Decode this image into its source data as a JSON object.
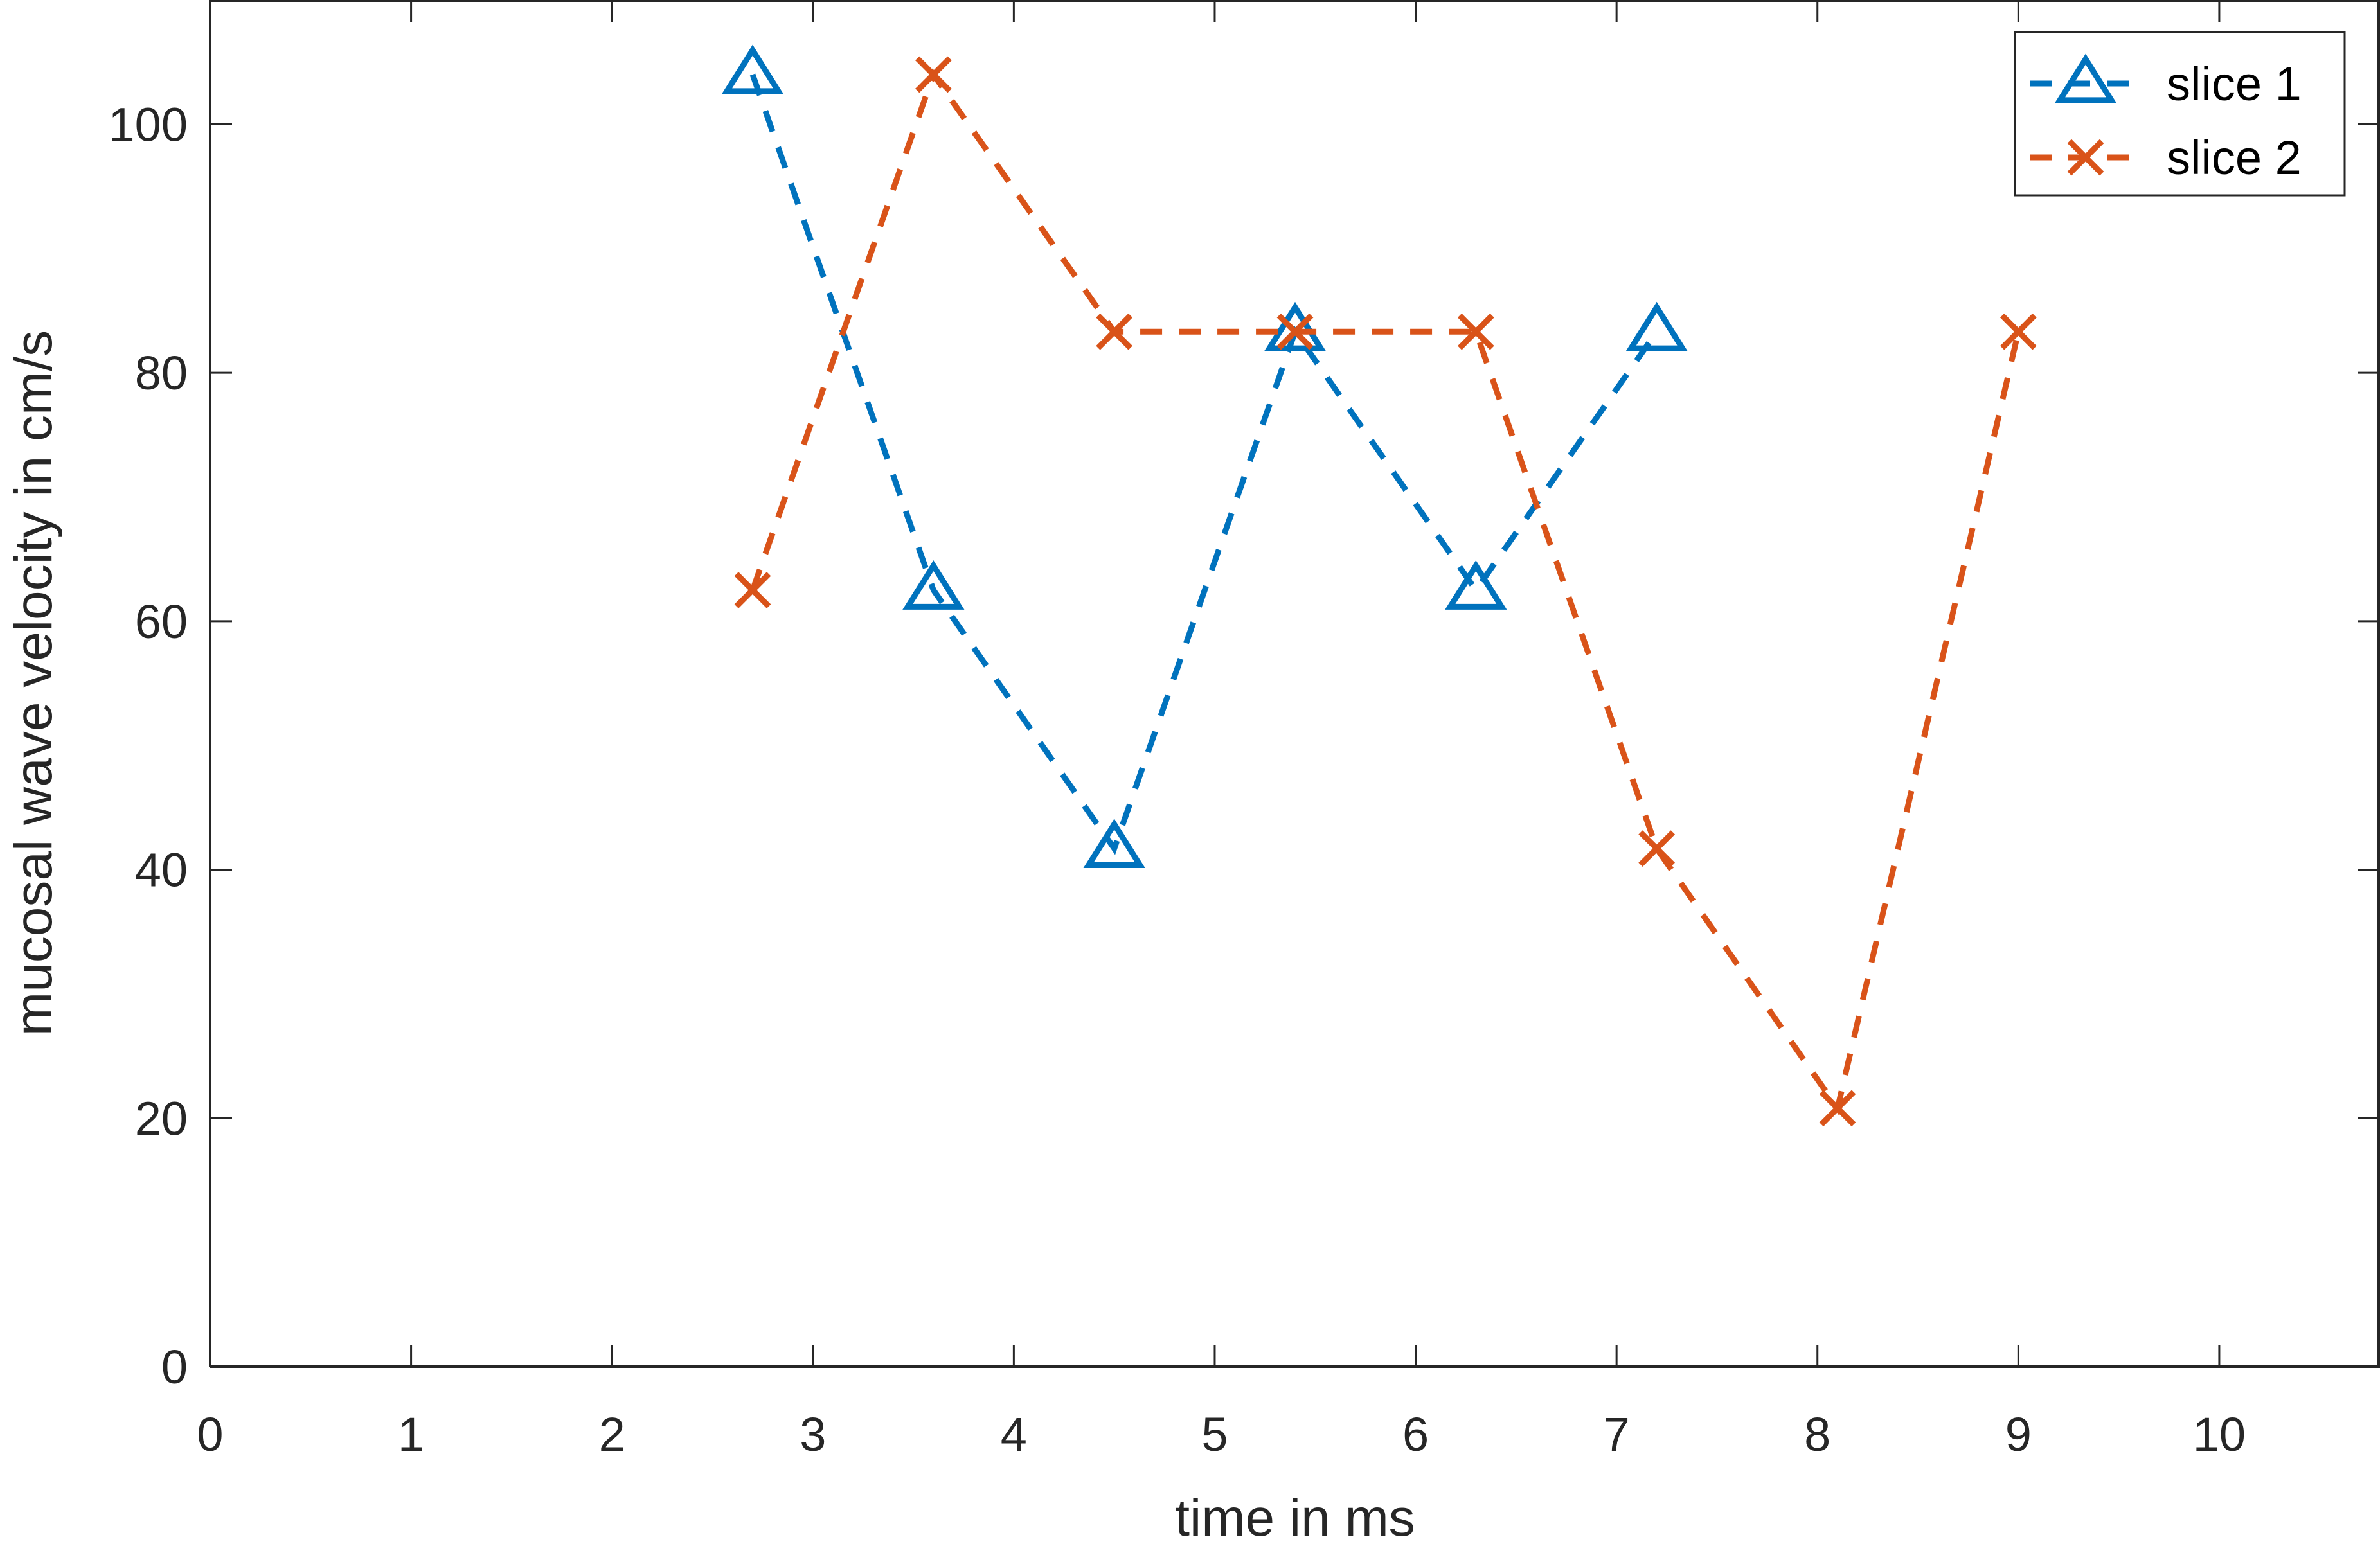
{
  "chart_data": {
    "type": "line",
    "xlabel": "time in ms",
    "ylabel": "mucosal wave velocity in cm/s",
    "xlim": [
      0,
      10.8
    ],
    "ylim": [
      0,
      110
    ],
    "x_ticks": [
      "0",
      "1",
      "2",
      "3",
      "4",
      "5",
      "6",
      "7",
      "8",
      "9",
      "10"
    ],
    "y_ticks": [
      "0",
      "20",
      "40",
      "60",
      "80",
      "100"
    ],
    "grid": false,
    "legend_position": "top-right",
    "series": [
      {
        "name": "slice 1",
        "color": "#0072BD",
        "marker": "triangle",
        "line_style": "dashed",
        "x": [
          2.7,
          3.6,
          4.5,
          5.4,
          6.3,
          7.2
        ],
        "y": [
          104,
          62.5,
          41.7,
          83.3,
          62.5,
          83.3
        ]
      },
      {
        "name": "slice 2",
        "color": "#D95319",
        "marker": "x",
        "line_style": "dashed",
        "x": [
          2.7,
          3.6,
          4.5,
          5.4,
          6.3,
          7.2,
          8.1,
          9.0
        ],
        "y": [
          62.5,
          104,
          83.3,
          83.3,
          83.3,
          41.7,
          20.8,
          83.3
        ]
      }
    ]
  }
}
